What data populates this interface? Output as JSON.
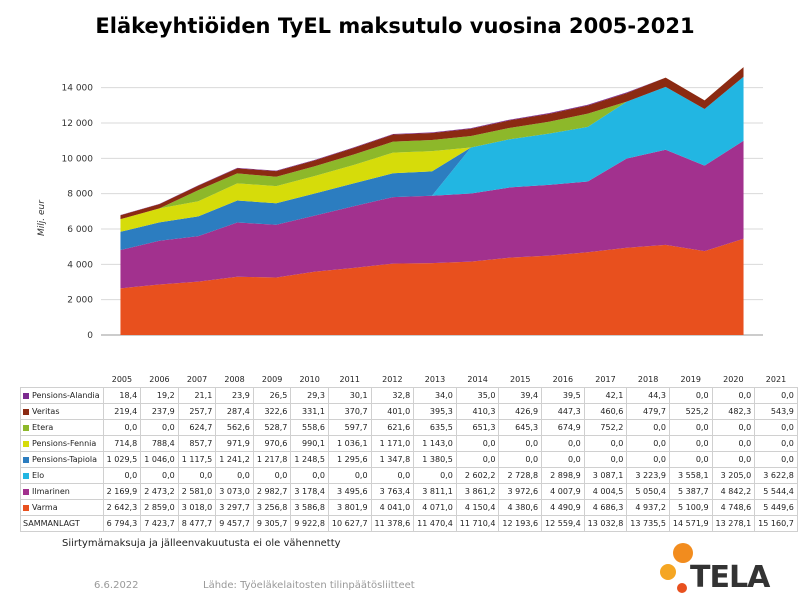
{
  "chart_data": {
    "type": "area",
    "stacked": true,
    "title": "Eläkeyhtiöiden TyEL maksutulo vuosina 2005-2021",
    "ylabel": "Milj. eur",
    "ylim": [
      0,
      15000
    ],
    "yticks": [
      0,
      2000,
      4000,
      6000,
      8000,
      10000,
      12000,
      14000
    ],
    "ytick_labels": [
      "0",
      "2 000",
      "4 000",
      "6 000",
      "8 000",
      "10 000",
      "12 000",
      "14 000"
    ],
    "grid": true,
    "legend": "table-below",
    "categories": [
      "2005",
      "2006",
      "2007",
      "2008",
      "2009",
      "2010",
      "2011",
      "2012",
      "2013",
      "2014",
      "2015",
      "2016",
      "2017",
      "2018",
      "2019",
      "2020",
      "2021"
    ],
    "series": [
      {
        "name": "Pensions-Alandia",
        "color": "#7b2a8f",
        "values": [
          18.4,
          19.2,
          21.1,
          23.9,
          26.5,
          29.3,
          30.1,
          32.8,
          34.0,
          35.0,
          39.4,
          39.5,
          42.1,
          44.3,
          0.0,
          0.0,
          0.0
        ],
        "labels": [
          "18,4",
          "19,2",
          "21,1",
          "23,9",
          "26,5",
          "29,3",
          "30,1",
          "32,8",
          "34,0",
          "35,0",
          "39,4",
          "39,5",
          "42,1",
          "44,3",
          "0,0",
          "0,0",
          "0,0"
        ]
      },
      {
        "name": "Veritas",
        "color": "#8b2a12",
        "values": [
          219.4,
          237.9,
          257.7,
          287.4,
          322.6,
          331.1,
          370.7,
          401.0,
          395.3,
          410.3,
          426.9,
          447.3,
          460.6,
          479.7,
          525.2,
          482.3,
          543.9
        ],
        "labels": [
          "219,4",
          "237,9",
          "257,7",
          "287,4",
          "322,6",
          "331,1",
          "370,7",
          "401,0",
          "395,3",
          "410,3",
          "426,9",
          "447,3",
          "460,6",
          "479,7",
          "525,2",
          "482,3",
          "543,9"
        ]
      },
      {
        "name": "Etera",
        "color": "#8db82a",
        "values": [
          0.0,
          0.0,
          624.7,
          562.6,
          528.7,
          558.6,
          597.7,
          621.6,
          635.5,
          651.3,
          645.3,
          674.9,
          752.2,
          0.0,
          0.0,
          0.0,
          0.0
        ],
        "labels": [
          "0,0",
          "0,0",
          "624,7",
          "562,6",
          "528,7",
          "558,6",
          "597,7",
          "621,6",
          "635,5",
          "651,3",
          "645,3",
          "674,9",
          "752,2",
          "0,0",
          "0,0",
          "0,0",
          "0,0"
        ]
      },
      {
        "name": "Pensions-Fennia",
        "color": "#d6dc0a",
        "values": [
          714.8,
          788.4,
          857.7,
          971.9,
          970.6,
          990.1,
          1036.1,
          1171.0,
          1143.0,
          0.0,
          0.0,
          0.0,
          0.0,
          0.0,
          0.0,
          0.0,
          0.0
        ],
        "labels": [
          "714,8",
          "788,4",
          "857,7",
          "971,9",
          "970,6",
          "990,1",
          "1 036,1",
          "1 171,0",
          "1 143,0",
          "0,0",
          "0,0",
          "0,0",
          "0,0",
          "0,0",
          "0,0",
          "0,0",
          "0,0"
        ]
      },
      {
        "name": "Pensions-Tapiola",
        "color": "#2c7dc0",
        "values": [
          1029.5,
          1046.0,
          1117.5,
          1241.2,
          1217.8,
          1248.5,
          1295.6,
          1347.8,
          1380.5,
          0.0,
          0.0,
          0.0,
          0.0,
          0.0,
          0.0,
          0.0,
          0.0
        ],
        "labels": [
          "1 029,5",
          "1 046,0",
          "1 117,5",
          "1 241,2",
          "1 217,8",
          "1 248,5",
          "1 295,6",
          "1 347,8",
          "1 380,5",
          "0,0",
          "0,0",
          "0,0",
          "0,0",
          "0,0",
          "0,0",
          "0,0",
          "0,0"
        ]
      },
      {
        "name": "Elo",
        "color": "#22b6e2",
        "values": [
          0.0,
          0.0,
          0.0,
          0.0,
          0.0,
          0.0,
          0.0,
          0.0,
          0.0,
          2602.2,
          2728.8,
          2898.9,
          3087.1,
          3223.9,
          3558.1,
          3205.0,
          3622.8
        ],
        "labels": [
          "0,0",
          "0,0",
          "0,0",
          "0,0",
          "0,0",
          "0,0",
          "0,0",
          "0,0",
          "0,0",
          "2 602,2",
          "2 728,8",
          "2 898,9",
          "3 087,1",
          "3 223,9",
          "3 558,1",
          "3 205,0",
          "3 622,8"
        ]
      },
      {
        "name": "Ilmarinen",
        "color": "#a2318e",
        "values": [
          2169.9,
          2473.2,
          2581.0,
          3073.0,
          2982.7,
          3178.4,
          3495.6,
          3763.4,
          3811.1,
          3861.2,
          3972.6,
          4007.9,
          4004.5,
          5050.4,
          5387.7,
          4842.2,
          5544.4
        ],
        "labels": [
          "2 169,9",
          "2 473,2",
          "2 581,0",
          "3 073,0",
          "2 982,7",
          "3 178,4",
          "3 495,6",
          "3 763,4",
          "3 811,1",
          "3 861,2",
          "3 972,6",
          "4 007,9",
          "4 004,5",
          "5 050,4",
          "5 387,7",
          "4 842,2",
          "5 544,4"
        ]
      },
      {
        "name": "Varma",
        "color": "#e8501e",
        "values": [
          2642.3,
          2859.0,
          3018.0,
          3297.7,
          3256.8,
          3586.8,
          3801.9,
          4041.0,
          4071.0,
          4150.4,
          4380.6,
          4490.9,
          4686.3,
          4937.2,
          5100.9,
          4748.6,
          5449.6
        ],
        "labels": [
          "2 642,3",
          "2 859,0",
          "3 018,0",
          "3 297,7",
          "3 256,8",
          "3 586,8",
          "3 801,9",
          "4 041,0",
          "4 071,0",
          "4 150,4",
          "4 380,6",
          "4 490,9",
          "4 686,3",
          "4 937,2",
          "5 100,9",
          "4 748,6",
          "5 449,6"
        ]
      }
    ],
    "total": {
      "name": "SAMMANLAGT",
      "values": [
        6794.3,
        7423.7,
        8477.7,
        9457.7,
        9305.7,
        9922.8,
        10627.7,
        11378.6,
        11470.4,
        11710.4,
        12193.6,
        12559.4,
        13032.8,
        13735.5,
        14571.9,
        13278.1,
        15160.7
      ],
      "labels": [
        "6 794,3",
        "7 423,7",
        "8 477,7",
        "9 457,7",
        "9 305,7",
        "9 922,8",
        "10 627,7",
        "11 378,6",
        "11 470,4",
        "11 710,4",
        "12 193,6",
        "12 559,4",
        "13 032,8",
        "13 735,5",
        "14 571,9",
        "13 278,1",
        "15 160,7"
      ]
    }
  },
  "footnote": "Siirtymämaksuja ja jälleenvakuutusta ei ole vähennetty",
  "footer": {
    "date": "6.6.2022",
    "source": "Lähde: Työeläkelaitosten tilinpäätösliitteet"
  },
  "logo": {
    "text": "TELA",
    "colors": [
      "#f28c1e",
      "#e8501e"
    ]
  }
}
